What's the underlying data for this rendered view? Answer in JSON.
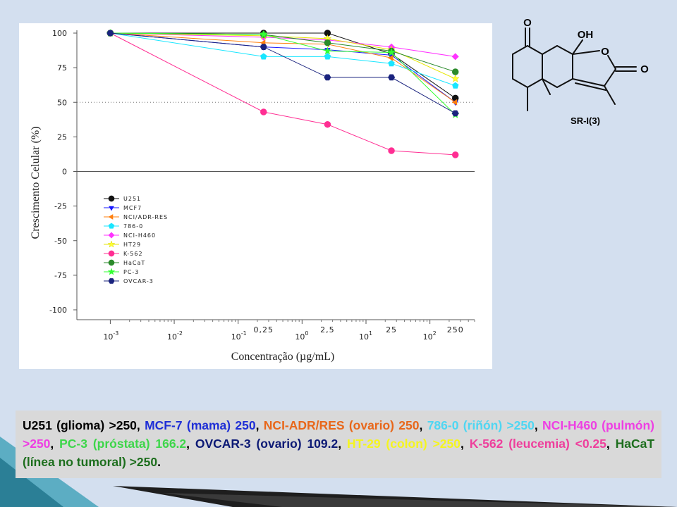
{
  "chart_data": {
    "type": "line",
    "xlabel": "Concentração (µg/mL)",
    "ylabel": "Crescimento Celular (%)",
    "x_scale": "log",
    "x_ticks": [
      {
        "value": 0.001,
        "label": "10",
        "sup": "-3"
      },
      {
        "value": 0.01,
        "label": "10",
        "sup": "-2"
      },
      {
        "value": 0.1,
        "label": "10",
        "sup": "-1"
      },
      {
        "value": 1,
        "label": "10",
        "sup": "0"
      },
      {
        "value": 10,
        "label": "10",
        "sup": "1"
      },
      {
        "value": 100,
        "label": "10",
        "sup": "2"
      }
    ],
    "x_value_labels": [
      {
        "value": 0.25,
        "label": "0,25"
      },
      {
        "value": 2.5,
        "label": "2,5"
      },
      {
        "value": 25,
        "label": "25"
      },
      {
        "value": 250,
        "label": "250"
      }
    ],
    "y_ticks": [
      100,
      75,
      50,
      25,
      0,
      -25,
      -50,
      -75,
      -100
    ],
    "ylim": [
      -100,
      100
    ],
    "xlim": [
      0.0003,
      500
    ],
    "reference_line": 50,
    "legend_position": "lower-left",
    "x": [
      0.001,
      0.25,
      2.5,
      25,
      250
    ],
    "series": [
      {
        "name": "U251",
        "color": "#111111",
        "marker": "circle",
        "values": [
          100,
          100,
          100,
          85,
          53
        ]
      },
      {
        "name": "MCF7",
        "color": "#1a1aff",
        "marker": "triangle-down",
        "values": [
          100,
          90,
          88,
          84,
          50
        ]
      },
      {
        "name": "NCI/ADR-RES",
        "color": "#ff7f0e",
        "marker": "triangle-left",
        "values": [
          100,
          93,
          92,
          82,
          50
        ]
      },
      {
        "name": "786-0",
        "color": "#19e6ff",
        "marker": "pentagon",
        "values": [
          100,
          83,
          83,
          78,
          62
        ]
      },
      {
        "name": "NCI-H460",
        "color": "#ff33ff",
        "marker": "diamond",
        "values": [
          100,
          97,
          95,
          90,
          83
        ]
      },
      {
        "name": "HT29",
        "color": "#ffff33",
        "marker": "star",
        "values": [
          100,
          98,
          96,
          88,
          67
        ]
      },
      {
        "name": "K-562",
        "color": "#ff2e93",
        "marker": "circle",
        "values": [
          100,
          43,
          34,
          15,
          12
        ]
      },
      {
        "name": "HaCaT",
        "color": "#2a8a2a",
        "marker": "circle",
        "values": [
          100,
          99,
          93,
          87,
          72
        ]
      },
      {
        "name": "PC-3",
        "color": "#33ff33",
        "marker": "star",
        "values": [
          100,
          99,
          87,
          86,
          41
        ]
      },
      {
        "name": "OVCAR-3",
        "color": "#1a237e",
        "marker": "hexagon",
        "values": [
          100,
          90,
          68,
          68,
          42
        ]
      }
    ]
  },
  "molecule": {
    "label": "SR-I(3)",
    "atoms": {
      "o_ketone": "O",
      "oh": "OH",
      "o_ring": "O",
      "o_carbonyl": "O"
    }
  },
  "caption": {
    "segments": [
      {
        "text": "U251 (glioma) >250, ",
        "color": "#000000"
      },
      {
        "text": "MCF-7 (mama) 250",
        "color": "#1f2fd6"
      },
      {
        "text": ", ",
        "color": "#000000"
      },
      {
        "text": "NCI-ADR/RES (ovario) 250",
        "color": "#e8671a"
      },
      {
        "text": ", ",
        "color": "#000000"
      },
      {
        "text": "786-0 (riñón) >250",
        "color": "#4fd6f2"
      },
      {
        "text": ", ",
        "color": "#000000"
      },
      {
        "text": "NCI-H460 (pulmón) >250",
        "color": "#ee3fe3"
      },
      {
        "text": ", ",
        "color": "#000000"
      },
      {
        "text": "PC-3 (próstata) 166.2",
        "color": "#3dd64a"
      },
      {
        "text": ", ",
        "color": "#000000"
      },
      {
        "text": "OVCAR-3 (ovario) 109.2",
        "color": "#0d1a75"
      },
      {
        "text": ", ",
        "color": "#000000"
      },
      {
        "text": "HT-29 (colon) >250",
        "color": "#f5f51f"
      },
      {
        "text": ", ",
        "color": "#000000"
      },
      {
        "text": "K-562 (leucemia) <0.25",
        "color": "#ee3f9c"
      },
      {
        "text": ", ",
        "color": "#000000"
      },
      {
        "text": "HaCaT (línea no tumoral) >250",
        "color": "#1d6e1d"
      },
      {
        "text": ".",
        "color": "#000000"
      }
    ]
  }
}
